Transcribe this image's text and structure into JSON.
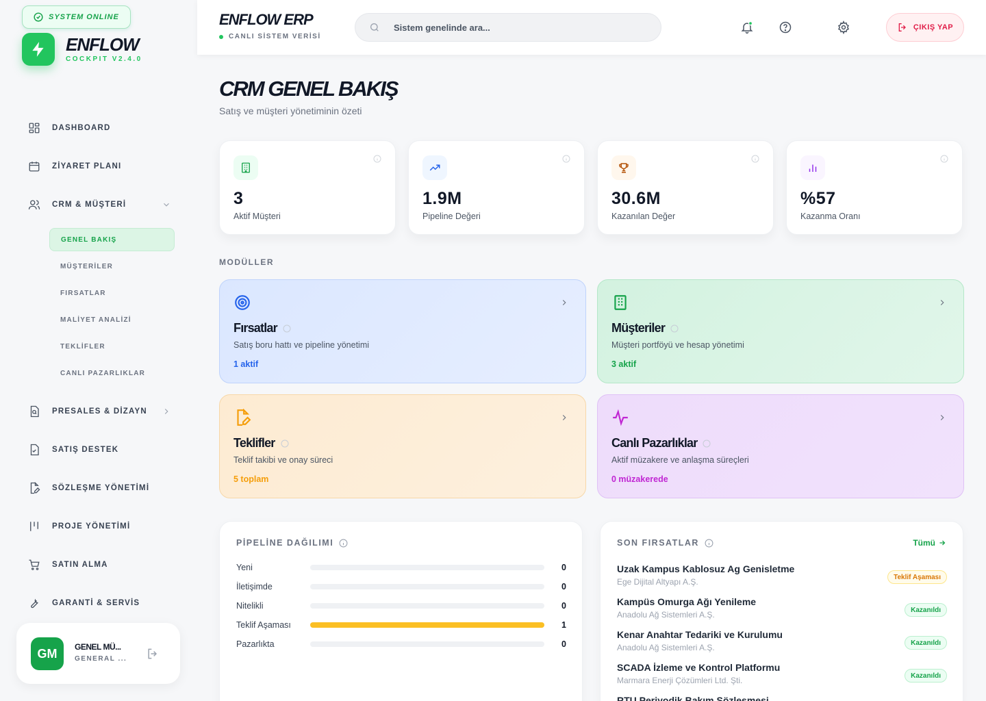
{
  "sidebar": {
    "status": "SYSTEM ONLINE",
    "brand": "ENFLOW",
    "brand_sub": "COCKPIT V2.4.0",
    "nav": [
      {
        "label": "DASHBOARD",
        "icon": "grid-icon"
      },
      {
        "label": "ZİYARET PLANI",
        "icon": "calendar-icon"
      },
      {
        "label": "CRM & MÜŞTERİ",
        "icon": "users-icon"
      },
      {
        "label": "PRESALES & DİZAYN",
        "icon": "file-search-icon"
      },
      {
        "label": "SATIŞ DESTEK",
        "icon": "file-check-icon"
      },
      {
        "label": "SÖZLEŞME YÖNETİMİ",
        "icon": "file-edit-icon"
      },
      {
        "label": "PROJE YÖNETİMİ",
        "icon": "kanban-icon"
      },
      {
        "label": "SATIN ALMA",
        "icon": "cart-icon"
      },
      {
        "label": "GARANTİ & SERVİS",
        "icon": "wrench-icon"
      }
    ],
    "sub_items": [
      {
        "label": "GENEL BAKIŞ",
        "active": true
      },
      {
        "label": "MÜŞTERİLER"
      },
      {
        "label": "FIRSATLAR"
      },
      {
        "label": "MALİYET ANALİZİ"
      },
      {
        "label": "TEKLİFLER"
      },
      {
        "label": "CANLI PAZARLIKLAR"
      }
    ],
    "user": {
      "initials": "GM",
      "name": "GENEL MÜ...",
      "role": "GENERAL ..."
    }
  },
  "header": {
    "title": "ENFLOW ERP",
    "sub": "CANLI SİSTEM VERİSİ",
    "search_placeholder": "Sistem genelinde ara...",
    "logout_label": "ÇIKIŞ YAP"
  },
  "page": {
    "title": "CRM GENEL BAKIŞ",
    "subtitle": "Satış ve müşteri yönetiminin özeti"
  },
  "stats": [
    {
      "value": "3",
      "label": "Aktif Müşteri",
      "icon": "building-icon",
      "color": "#16a34a",
      "bg": "#ecfdf3"
    },
    {
      "value": "1.9M",
      "label": "Pipeline Değeri",
      "icon": "trending-up-icon",
      "color": "#2563eb",
      "bg": "#eff6ff"
    },
    {
      "value": "30.6M",
      "label": "Kazanılan Değer",
      "icon": "trophy-icon",
      "color": "#b45309",
      "bg": "#fff7ed"
    },
    {
      "value": "%57",
      "label": "Kazanma Oranı",
      "icon": "bar-chart-icon",
      "color": "#9333ea",
      "bg": "#faf5ff"
    }
  ],
  "modules_label": "MODÜLLER",
  "modules": [
    {
      "title": "Fırsatlar",
      "desc": "Satış boru hattı ve pipeline yönetimi",
      "count": "1 aktif",
      "icon": "target-icon",
      "accent": "#2563eb"
    },
    {
      "title": "Müşteriler",
      "desc": "Müşteri portföyü ve hesap yönetimi",
      "count": "3 aktif",
      "icon": "building-icon",
      "accent": "#16a34a"
    },
    {
      "title": "Teklifler",
      "desc": "Teklif takibi ve onay süreci",
      "count": "5 toplam",
      "icon": "file-edit-icon",
      "accent": "#f59e0b"
    },
    {
      "title": "Canlı Pazarlıklar",
      "desc": "Aktif müzakere ve anlaşma süreçleri",
      "count": "0 müzakerede",
      "icon": "activity-icon",
      "accent": "#c026d3"
    }
  ],
  "pipeline": {
    "title": "PİPELİNE DAĞILIMI",
    "rows": [
      {
        "name": "Yeni",
        "count": "0",
        "fraction": 0
      },
      {
        "name": "İletişimde",
        "count": "0",
        "fraction": 0
      },
      {
        "name": "Nitelikli",
        "count": "0",
        "fraction": 0
      },
      {
        "name": "Teklif Aşaması",
        "count": "1",
        "fraction": 1
      },
      {
        "name": "Pazarlıkta",
        "count": "0",
        "fraction": 0
      }
    ]
  },
  "recent": {
    "title": "SON FIRSATLAR",
    "all_label": "Tümü",
    "items": [
      {
        "name": "Uzak Kampus Kablosuz Ag Genisletme",
        "company": "Ege Dijital Altyapı A.Ş.",
        "status": "Teklif Aşaması",
        "kind": "teklif"
      },
      {
        "name": "Kampüs Omurga Ağı Yenileme",
        "company": "Anadolu Ağ Sistemleri A.Ş.",
        "status": "Kazanıldı",
        "kind": "won"
      },
      {
        "name": "Kenar Anahtar Tedariki ve Kurulumu",
        "company": "Anadolu Ağ Sistemleri A.Ş.",
        "status": "Kazanıldı",
        "kind": "won"
      },
      {
        "name": "SCADA İzleme ve Kontrol Platformu",
        "company": "Marmara Enerji Çözümleri Ltd. Şti.",
        "status": "Kazanıldı",
        "kind": "won"
      },
      {
        "name": "RTU Periyodik Bakım Sözleşmesi",
        "company": "",
        "status": "",
        "kind": "won"
      }
    ]
  }
}
